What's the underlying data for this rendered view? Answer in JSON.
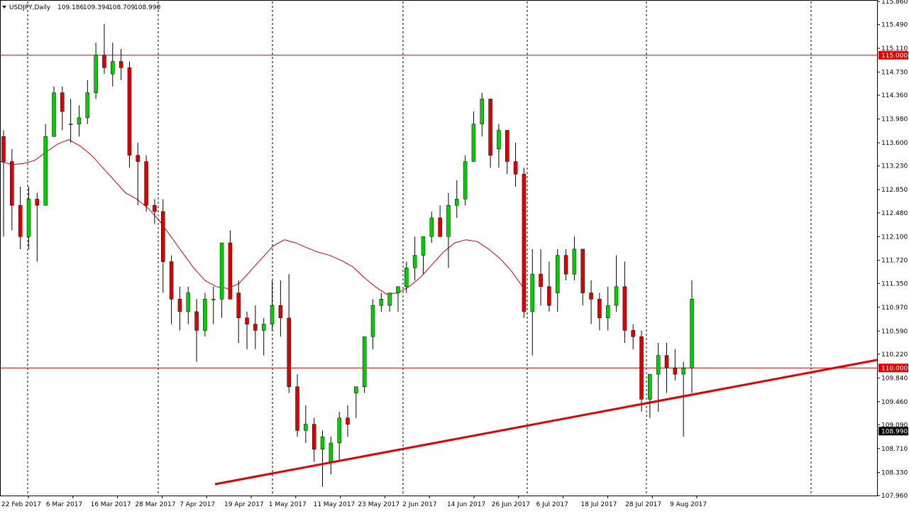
{
  "header": {
    "symbol": "USDJPY,Daily",
    "open": "109.186",
    "high": "109.394",
    "low": "108.709",
    "close": "108.990"
  },
  "colors": {
    "bull": "#00d000",
    "bear": "#e00000",
    "wick": "#000000",
    "ma": "#cc0000",
    "level_line": "#cc0000",
    "trendline": "#e00000",
    "grid": "#000000",
    "price_tag_bg": "#000000",
    "level_tag_bg": "#e00000"
  },
  "chart_data": {
    "type": "candlestick",
    "title": "USDJPY,Daily",
    "ylim": [
      107.96,
      115.86
    ],
    "y_ticks": [
      "115.860",
      "115.490",
      "115.110",
      "114.730",
      "114.360",
      "113.980",
      "113.600",
      "113.230",
      "112.850",
      "112.480",
      "112.100",
      "111.720",
      "111.350",
      "110.970",
      "110.590",
      "110.220",
      "109.840",
      "109.460",
      "109.090",
      "108.710",
      "108.330",
      "107.960"
    ],
    "x_labels": [
      "22 Feb 2017",
      "6 Mar 2017",
      "16 Mar 2017",
      "28 Mar 2017",
      "7 Apr 2017",
      "19 Apr 2017",
      "1 May 2017",
      "11 May 2017",
      "23 May 2017",
      "2 Jun 2017",
      "14 Jun 2017",
      "26 Jun 2017",
      "6 Jul 2017",
      "18 Jul 2017",
      "28 Jul 2017",
      "9 Aug 2017"
    ],
    "vertical_grid_dates": [
      "6 Mar 2017",
      "28 Mar 2017",
      "1 May 2017",
      "2 Jun 2017",
      "26 Jun 2017",
      "28 Jul 2017",
      "9 Aug 2017"
    ],
    "horizontal_levels": [
      115.0,
      110.0
    ],
    "level_labels": [
      "115.000",
      "110.000"
    ],
    "last_price_label": "108.990",
    "last_price": 108.99,
    "moving_average": [
      113.3,
      113.25,
      113.27,
      113.32,
      113.45,
      113.58,
      113.65,
      113.55,
      113.4,
      113.2,
      113.0,
      112.8,
      112.7,
      112.55,
      112.35,
      112.1,
      111.85,
      111.6,
      111.4,
      111.3,
      111.27,
      111.35,
      111.55,
      111.75,
      111.95,
      112.05,
      112.0,
      111.92,
      111.85,
      111.8,
      111.72,
      111.62,
      111.45,
      111.3,
      111.18,
      111.2,
      111.3,
      111.45,
      111.65,
      111.85,
      112.0,
      112.05,
      112.02,
      111.9,
      111.75,
      111.55,
      111.3
    ],
    "candles": [
      {
        "o": 113.7,
        "h": 113.8,
        "l": 112.1,
        "c": 113.3
      },
      {
        "o": 113.3,
        "h": 113.5,
        "l": 112.2,
        "c": 112.6
      },
      {
        "o": 112.6,
        "h": 112.9,
        "l": 111.9,
        "c": 112.1
      },
      {
        "o": 112.1,
        "h": 112.9,
        "l": 111.9,
        "c": 112.7
      },
      {
        "o": 112.7,
        "h": 112.8,
        "l": 111.7,
        "c": 112.6
      },
      {
        "o": 112.6,
        "h": 113.9,
        "l": 112.6,
        "c": 113.7
      },
      {
        "o": 113.7,
        "h": 114.5,
        "l": 113.7,
        "c": 114.4
      },
      {
        "o": 114.4,
        "h": 114.5,
        "l": 113.8,
        "c": 114.1
      },
      {
        "o": 113.9,
        "h": 114.3,
        "l": 113.6,
        "c": 113.9
      },
      {
        "o": 113.9,
        "h": 114.2,
        "l": 113.7,
        "c": 114.0
      },
      {
        "o": 114.0,
        "h": 114.6,
        "l": 113.9,
        "c": 114.4
      },
      {
        "o": 114.4,
        "h": 115.2,
        "l": 114.3,
        "c": 115.0
      },
      {
        "o": 115.0,
        "h": 115.5,
        "l": 114.7,
        "c": 114.8
      },
      {
        "o": 114.7,
        "h": 115.2,
        "l": 114.5,
        "c": 114.9
      },
      {
        "o": 114.9,
        "h": 115.1,
        "l": 114.6,
        "c": 114.8
      },
      {
        "o": 114.8,
        "h": 114.9,
        "l": 113.2,
        "c": 113.4
      },
      {
        "o": 113.4,
        "h": 113.6,
        "l": 112.6,
        "c": 113.3
      },
      {
        "o": 113.3,
        "h": 113.4,
        "l": 112.5,
        "c": 112.6
      },
      {
        "o": 112.6,
        "h": 112.7,
        "l": 112.3,
        "c": 112.5
      },
      {
        "o": 112.5,
        "h": 112.7,
        "l": 111.2,
        "c": 111.7
      },
      {
        "o": 111.7,
        "h": 111.8,
        "l": 110.7,
        "c": 111.1
      },
      {
        "o": 111.1,
        "h": 111.3,
        "l": 110.6,
        "c": 110.9
      },
      {
        "o": 110.9,
        "h": 111.3,
        "l": 110.7,
        "c": 111.2
      },
      {
        "o": 110.9,
        "h": 111.1,
        "l": 110.1,
        "c": 110.6
      },
      {
        "o": 110.6,
        "h": 111.2,
        "l": 110.5,
        "c": 111.1
      },
      {
        "o": 111.1,
        "h": 111.3,
        "l": 110.7,
        "c": 111.1
      },
      {
        "o": 111.1,
        "h": 112.0,
        "l": 110.8,
        "c": 112.0
      },
      {
        "o": 112.0,
        "h": 112.2,
        "l": 111.1,
        "c": 111.1
      },
      {
        "o": 111.2,
        "h": 111.4,
        "l": 110.4,
        "c": 110.8
      },
      {
        "o": 110.8,
        "h": 110.9,
        "l": 110.3,
        "c": 110.7
      },
      {
        "o": 110.7,
        "h": 111.0,
        "l": 110.3,
        "c": 110.6
      },
      {
        "o": 110.6,
        "h": 110.8,
        "l": 110.2,
        "c": 110.7
      },
      {
        "o": 110.7,
        "h": 111.4,
        "l": 110.6,
        "c": 111.0
      },
      {
        "o": 111.0,
        "h": 111.4,
        "l": 110.5,
        "c": 110.8
      },
      {
        "o": 110.8,
        "h": 111.5,
        "l": 109.6,
        "c": 109.7
      },
      {
        "o": 109.7,
        "h": 109.9,
        "l": 108.9,
        "c": 109.0
      },
      {
        "o": 109.0,
        "h": 109.4,
        "l": 108.8,
        "c": 109.1
      },
      {
        "o": 109.1,
        "h": 109.2,
        "l": 108.5,
        "c": 108.7
      },
      {
        "o": 108.7,
        "h": 109.0,
        "l": 108.1,
        "c": 108.9
      },
      {
        "o": 108.5,
        "h": 108.9,
        "l": 108.3,
        "c": 108.8
      },
      {
        "o": 108.8,
        "h": 109.3,
        "l": 108.5,
        "c": 109.2
      },
      {
        "o": 109.2,
        "h": 109.4,
        "l": 108.9,
        "c": 109.1
      },
      {
        "o": 109.6,
        "h": 109.7,
        "l": 109.2,
        "c": 109.7
      },
      {
        "o": 109.7,
        "h": 110.5,
        "l": 109.6,
        "c": 110.5
      },
      {
        "o": 110.5,
        "h": 111.1,
        "l": 110.3,
        "c": 111.0
      },
      {
        "o": 111.0,
        "h": 111.2,
        "l": 110.9,
        "c": 111.1
      },
      {
        "o": 111.0,
        "h": 111.2,
        "l": 110.9,
        "c": 111.2
      },
      {
        "o": 111.2,
        "h": 111.3,
        "l": 110.9,
        "c": 111.3
      },
      {
        "o": 111.3,
        "h": 111.7,
        "l": 111.2,
        "c": 111.6
      },
      {
        "o": 111.6,
        "h": 112.1,
        "l": 111.4,
        "c": 111.8
      },
      {
        "o": 111.8,
        "h": 112.1,
        "l": 111.5,
        "c": 112.1
      },
      {
        "o": 112.1,
        "h": 112.5,
        "l": 112.0,
        "c": 112.4
      },
      {
        "o": 112.4,
        "h": 112.6,
        "l": 112.1,
        "c": 112.1
      },
      {
        "o": 112.1,
        "h": 112.8,
        "l": 111.6,
        "c": 112.6
      },
      {
        "o": 112.6,
        "h": 113.0,
        "l": 112.4,
        "c": 112.7
      },
      {
        "o": 112.7,
        "h": 113.4,
        "l": 112.6,
        "c": 113.3
      },
      {
        "o": 113.3,
        "h": 114.1,
        "l": 113.3,
        "c": 113.9
      },
      {
        "o": 113.9,
        "h": 114.4,
        "l": 113.7,
        "c": 114.3
      },
      {
        "o": 114.3,
        "h": 114.3,
        "l": 113.2,
        "c": 113.4
      },
      {
        "o": 113.5,
        "h": 113.9,
        "l": 113.2,
        "c": 113.8
      },
      {
        "o": 113.8,
        "h": 113.8,
        "l": 113.1,
        "c": 113.3
      },
      {
        "o": 113.3,
        "h": 113.6,
        "l": 112.9,
        "c": 113.1
      },
      {
        "o": 113.1,
        "h": 113.2,
        "l": 110.8,
        "c": 110.9
      },
      {
        "o": 110.9,
        "h": 111.9,
        "l": 110.2,
        "c": 111.5
      },
      {
        "o": 111.5,
        "h": 111.9,
        "l": 111.0,
        "c": 111.3
      },
      {
        "o": 111.3,
        "h": 111.7,
        "l": 110.9,
        "c": 111.0
      },
      {
        "o": 111.2,
        "h": 111.9,
        "l": 110.9,
        "c": 111.8
      },
      {
        "o": 111.8,
        "h": 111.9,
        "l": 111.4,
        "c": 111.5
      },
      {
        "o": 111.5,
        "h": 112.1,
        "l": 111.4,
        "c": 111.9
      },
      {
        "o": 111.9,
        "h": 111.9,
        "l": 111.0,
        "c": 111.2
      },
      {
        "o": 111.2,
        "h": 111.4,
        "l": 110.7,
        "c": 111.1
      },
      {
        "o": 111.1,
        "h": 111.2,
        "l": 110.6,
        "c": 110.8
      },
      {
        "o": 110.8,
        "h": 111.3,
        "l": 110.6,
        "c": 111.0
      },
      {
        "o": 111.0,
        "h": 111.8,
        "l": 110.9,
        "c": 111.3
      },
      {
        "o": 111.3,
        "h": 111.7,
        "l": 110.4,
        "c": 110.6
      },
      {
        "o": 110.6,
        "h": 110.7,
        "l": 110.3,
        "c": 110.5
      },
      {
        "o": 110.5,
        "h": 110.6,
        "l": 109.3,
        "c": 109.5
      },
      {
        "o": 109.5,
        "h": 109.9,
        "l": 109.2,
        "c": 109.9
      },
      {
        "o": 109.9,
        "h": 110.4,
        "l": 109.3,
        "c": 110.2
      },
      {
        "o": 110.2,
        "h": 110.4,
        "l": 109.6,
        "c": 110.0
      },
      {
        "o": 110.0,
        "h": 110.3,
        "l": 109.8,
        "c": 109.9
      },
      {
        "o": 109.9,
        "h": 110.1,
        "l": 108.9,
        "c": 110.0
      },
      {
        "o": 110.0,
        "h": 111.4,
        "l": 109.6,
        "c": 111.1
      }
    ]
  }
}
